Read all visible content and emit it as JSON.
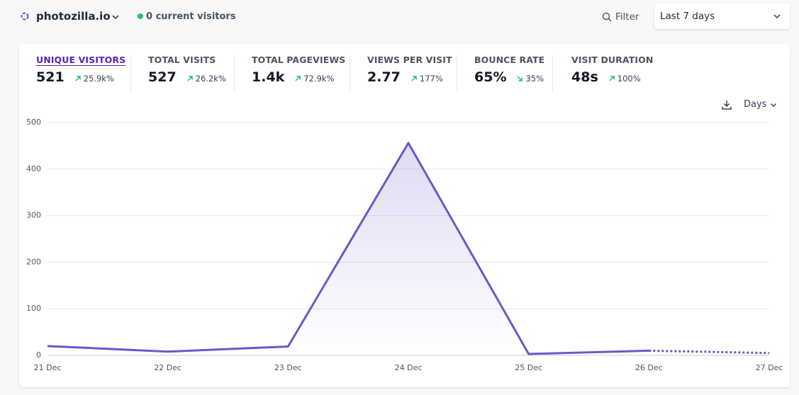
{
  "header": {
    "site": "photozilla.io",
    "visitors": "0 current visitors",
    "filter": "Filter",
    "period": "Last 7 days"
  },
  "stats": [
    {
      "label": "UNIQUE VISITORS",
      "value": "521",
      "change": "25.9k%",
      "trend": "up"
    },
    {
      "label": "TOTAL VISITS",
      "value": "527",
      "change": "26.2k%",
      "trend": "up"
    },
    {
      "label": "TOTAL PAGEVIEWS",
      "value": "1.4k",
      "change": "72.9k%",
      "trend": "up"
    },
    {
      "label": "VIEWS PER VISIT",
      "value": "2.77",
      "change": "177%",
      "trend": "up"
    },
    {
      "label": "BOUNCE RATE",
      "value": "65%",
      "change": "35%",
      "trend": "down"
    },
    {
      "label": "VISIT DURATION",
      "value": "48s",
      "change": "100%",
      "trend": "up"
    }
  ],
  "interval": "Days",
  "chart_data": {
    "type": "line",
    "categories": [
      "21 Dec",
      "22 Dec",
      "23 Dec",
      "24 Dec",
      "25 Dec",
      "26 Dec",
      "27 Dec"
    ],
    "series": [
      {
        "color": "#6c58c9",
        "values": [
          20,
          8,
          19,
          456,
          3,
          10,
          null
        ]
      },
      {
        "color": "#6c58c9",
        "values": [
          null,
          null,
          null,
          null,
          null,
          10,
          5
        ],
        "dashed": true
      }
    ],
    "ylim": [
      0,
      500
    ],
    "yticks": [
      0,
      100,
      200,
      300,
      400,
      500
    ],
    "grid": true
  }
}
